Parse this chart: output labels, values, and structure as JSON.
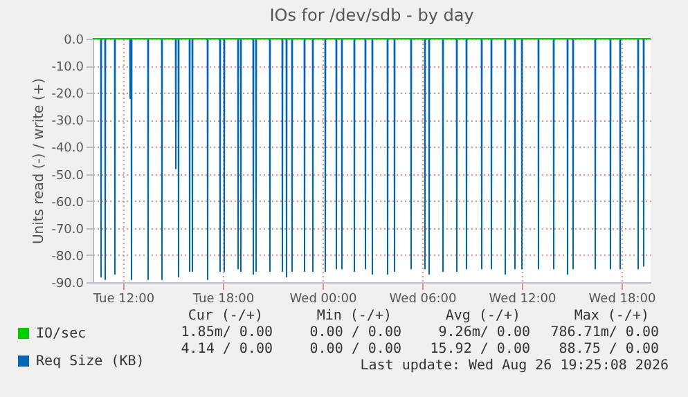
{
  "chart_data": {
    "type": "line",
    "title": "IOs for /dev/sdb - by day",
    "ylabel": "Units read (-) / write (+)",
    "xlim": [
      "2026-08-25T10:10",
      "2026-08-26T19:45"
    ],
    "xticks": [
      {
        "value": "2026-08-25T12:00",
        "label": "Tue 12:00"
      },
      {
        "value": "2026-08-25T18:00",
        "label": "Tue 18:00"
      },
      {
        "value": "2026-08-26T00:00",
        "label": "Wed 00:00"
      },
      {
        "value": "2026-08-26T06:00",
        "label": "Wed 06:00"
      },
      {
        "value": "2026-08-26T12:00",
        "label": "Wed 12:00"
      },
      {
        "value": "2026-08-26T18:00",
        "label": "Wed 18:00"
      }
    ],
    "ylim": [
      -90,
      0
    ],
    "yticks": [
      {
        "value": -90,
        "label": "-90.0"
      },
      {
        "value": -80,
        "label": "-80.0"
      },
      {
        "value": -70,
        "label": "-70.0"
      },
      {
        "value": -60,
        "label": "-60.0"
      },
      {
        "value": -50,
        "label": "-50.0"
      },
      {
        "value": -40,
        "label": "-40.0"
      },
      {
        "value": -30,
        "label": "-30.0"
      },
      {
        "value": -20,
        "label": "-20.0"
      },
      {
        "value": -10,
        "label": "-10.0"
      },
      {
        "value": 0,
        "label": "0.0"
      }
    ],
    "grid": true,
    "legend": "bottom left",
    "marker": "none",
    "line_style": "solid",
    "series": [
      {
        "name": "IO/sec",
        "color": "#00cc00",
        "x": [
          "2026-08-25T10:10",
          "2026-08-26T19:45"
        ],
        "values": [
          0,
          0
        ]
      },
      {
        "name": "Req Size (KB)",
        "color": "#0066b3",
        "x": [
          "2026-08-25T10:10",
          "2026-08-25T10:39",
          "2026-08-25T10:40",
          "2026-08-25T10:41",
          "2026-08-25T10:54",
          "2026-08-25T10:55",
          "2026-08-25T10:56",
          "2026-08-25T11:29",
          "2026-08-25T11:30",
          "2026-08-25T11:31",
          "2026-08-25T12:24",
          "2026-08-25T12:25",
          "2026-08-25T12:26",
          "2026-08-25T12:29",
          "2026-08-25T12:30",
          "2026-08-25T12:31",
          "2026-08-25T13:29",
          "2026-08-25T13:30",
          "2026-08-25T13:31",
          "2026-08-25T14:19",
          "2026-08-25T14:20",
          "2026-08-25T14:21",
          "2026-08-25T15:09",
          "2026-08-25T15:10",
          "2026-08-25T15:11",
          "2026-08-25T15:19",
          "2026-08-25T15:20",
          "2026-08-25T15:21",
          "2026-08-25T15:59",
          "2026-08-25T16:00",
          "2026-08-25T16:01",
          "2026-08-25T16:09",
          "2026-08-25T16:10",
          "2026-08-25T16:11",
          "2026-08-25T17:04",
          "2026-08-25T17:05",
          "2026-08-25T17:06",
          "2026-08-25T17:49",
          "2026-08-25T17:50",
          "2026-08-25T17:51",
          "2026-08-25T18:04",
          "2026-08-25T18:05",
          "2026-08-25T18:06",
          "2026-08-25T18:54",
          "2026-08-25T18:55",
          "2026-08-25T18:56",
          "2026-08-25T19:04",
          "2026-08-25T19:05",
          "2026-08-25T19:06",
          "2026-08-25T19:49",
          "2026-08-25T19:50",
          "2026-08-25T19:51",
          "2026-08-25T19:59",
          "2026-08-25T20:00",
          "2026-08-25T20:01",
          "2026-08-25T20:49",
          "2026-08-25T20:50",
          "2026-08-25T20:51",
          "2026-08-25T21:34",
          "2026-08-25T21:35",
          "2026-08-25T21:36",
          "2026-08-25T21:49",
          "2026-08-25T21:50",
          "2026-08-25T21:51",
          "2026-08-25T22:09",
          "2026-08-25T22:10",
          "2026-08-25T22:11",
          "2026-08-25T22:54",
          "2026-08-25T22:55",
          "2026-08-25T22:56",
          "2026-08-25T23:24",
          "2026-08-25T23:25",
          "2026-08-25T23:26",
          "2026-08-26T00:09",
          "2026-08-26T00:10",
          "2026-08-26T00:11",
          "2026-08-26T00:49",
          "2026-08-26T00:50",
          "2026-08-26T00:51",
          "2026-08-26T01:09",
          "2026-08-26T01:10",
          "2026-08-26T01:11",
          "2026-08-26T01:54",
          "2026-08-26T01:55",
          "2026-08-26T01:56",
          "2026-08-26T02:34",
          "2026-08-26T02:35",
          "2026-08-26T02:36",
          "2026-08-26T02:59",
          "2026-08-26T03:00",
          "2026-08-26T03:01",
          "2026-08-26T03:54",
          "2026-08-26T03:55",
          "2026-08-26T03:56",
          "2026-08-26T04:19",
          "2026-08-26T04:20",
          "2026-08-26T04:21",
          "2026-08-26T05:19",
          "2026-08-26T05:20",
          "2026-08-26T05:21",
          "2026-08-26T06:09",
          "2026-08-26T06:10",
          "2026-08-26T06:11",
          "2026-08-26T06:24",
          "2026-08-26T06:25",
          "2026-08-26T06:26",
          "2026-08-26T07:14",
          "2026-08-26T07:15",
          "2026-08-26T07:16",
          "2026-08-26T08:04",
          "2026-08-26T08:05",
          "2026-08-26T08:06",
          "2026-08-26T08:39",
          "2026-08-26T08:40",
          "2026-08-26T08:41",
          "2026-08-26T09:34",
          "2026-08-26T09:35",
          "2026-08-26T09:36",
          "2026-08-26T10:09",
          "2026-08-26T10:10",
          "2026-08-26T10:11",
          "2026-08-26T10:59",
          "2026-08-26T11:00",
          "2026-08-26T11:01",
          "2026-08-26T11:34",
          "2026-08-26T11:35",
          "2026-08-26T11:36",
          "2026-08-26T11:59",
          "2026-08-26T12:00",
          "2026-08-26T12:01",
          "2026-08-26T12:59",
          "2026-08-26T13:00",
          "2026-08-26T13:01",
          "2026-08-26T13:54",
          "2026-08-26T13:55",
          "2026-08-26T13:56",
          "2026-08-26T14:44",
          "2026-08-26T14:45",
          "2026-08-26T14:46",
          "2026-08-26T15:04",
          "2026-08-26T15:05",
          "2026-08-26T15:06",
          "2026-08-26T16:24",
          "2026-08-26T16:25",
          "2026-08-26T16:26",
          "2026-08-26T17:19",
          "2026-08-26T17:20",
          "2026-08-26T17:21",
          "2026-08-26T17:54",
          "2026-08-26T17:55",
          "2026-08-26T17:56",
          "2026-08-26T18:59",
          "2026-08-26T19:00",
          "2026-08-26T19:01",
          "2026-08-26T19:19",
          "2026-08-26T19:20",
          "2026-08-26T19:21"
        ],
        "values": [
          0,
          0,
          -88,
          0,
          0,
          -89,
          0,
          0,
          -87,
          0,
          0,
          -22,
          0,
          0,
          -89,
          0,
          0,
          -89,
          0,
          0,
          -89,
          0,
          0,
          -48,
          0,
          0,
          -88,
          0,
          0,
          -86,
          0,
          0,
          -86,
          0,
          0,
          -89,
          0,
          0,
          -86,
          0,
          0,
          -86,
          0,
          0,
          -85,
          0,
          0,
          -86,
          0,
          0,
          -87,
          0,
          0,
          -86,
          0,
          0,
          -86,
          0,
          0,
          -86,
          0,
          0,
          -88,
          0,
          0,
          -86,
          0,
          0,
          -86,
          0,
          0,
          -86,
          0,
          0,
          -86,
          0,
          0,
          -85,
          0,
          0,
          -85,
          0,
          0,
          -86,
          0,
          0,
          -85,
          0,
          0,
          -87,
          0,
          0,
          -87,
          0,
          0,
          -86,
          0,
          0,
          -85,
          0,
          0,
          -85,
          0,
          0,
          -87,
          0,
          0,
          -86,
          0,
          0,
          -86,
          0,
          0,
          -85,
          0,
          0,
          -85,
          0,
          0,
          -85,
          0,
          0,
          -87,
          0,
          0,
          -85,
          0,
          0,
          -85,
          0,
          0,
          -85,
          0,
          0,
          -85,
          0,
          0,
          -87,
          0,
          0,
          -85,
          0,
          0,
          -85,
          0,
          0,
          -85,
          0,
          0,
          -85,
          0,
          0,
          -85,
          0,
          0,
          -84,
          0
        ]
      }
    ],
    "annotations": [
      "Cur (-/+)",
      "Min (-/+)",
      "Avg (-/+)",
      "Max (-/+)",
      "1.85m/ 0.00",
      "0.00 / 0.00",
      "9.26m/ 0.00",
      "786.71m/ 0.00",
      "4.14 / 0.00",
      "0.00 / 0.00",
      "15.92 / 0.00",
      "88.75 / 0.00",
      "Last update: Wed Aug 26 19:25:08 2026"
    ]
  }
}
